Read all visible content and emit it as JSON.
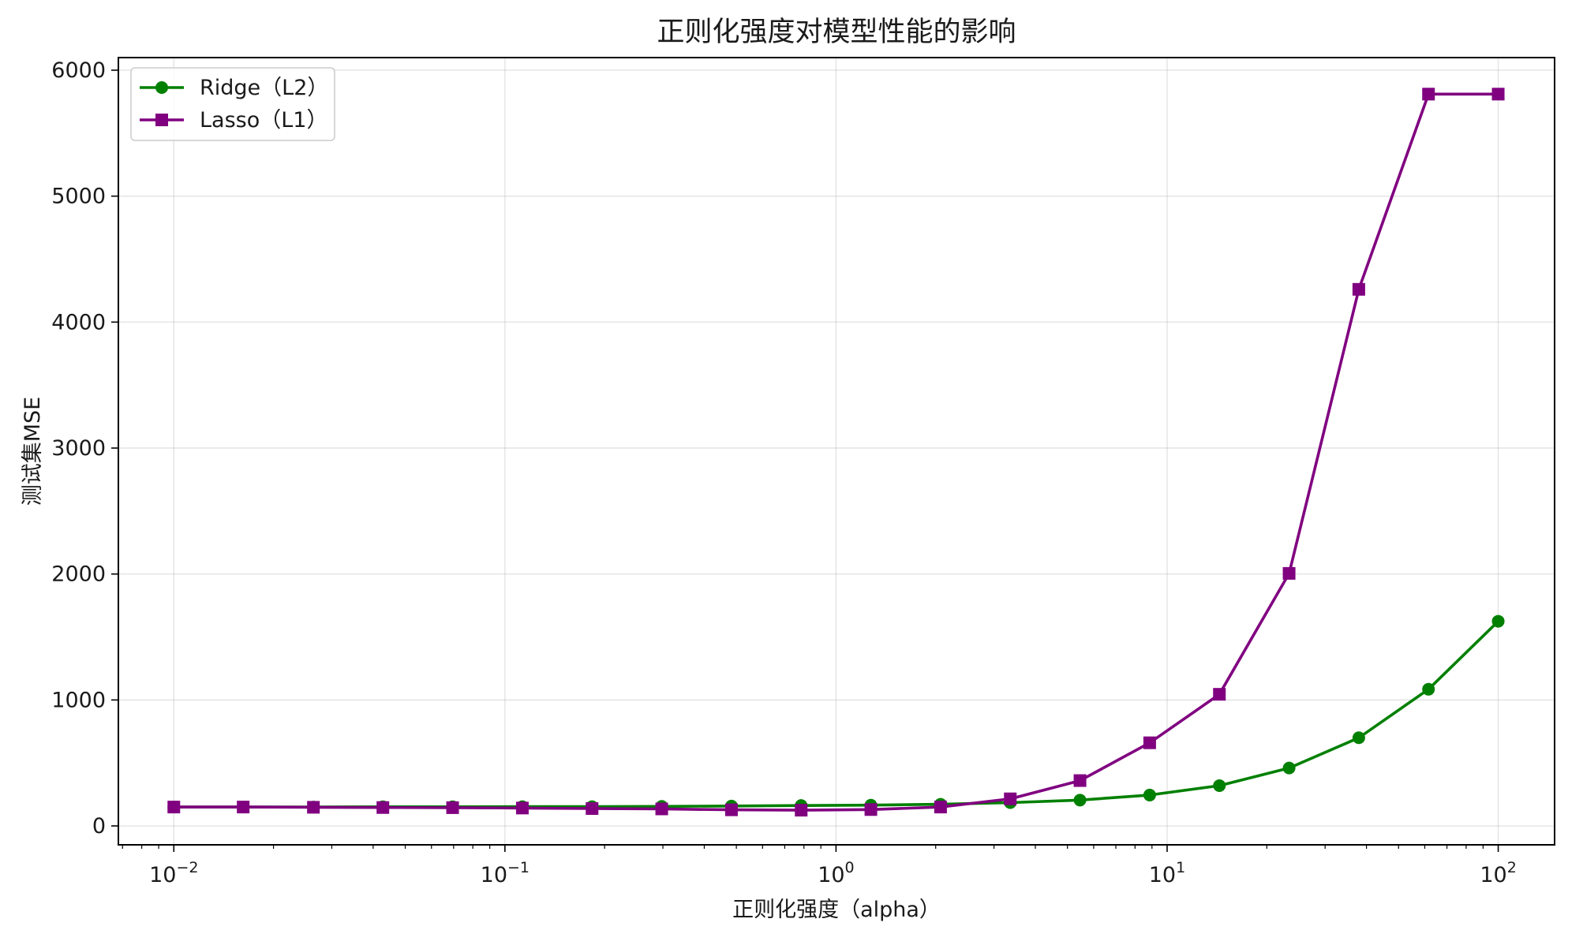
{
  "chart_data": {
    "type": "line",
    "title": "正则化强度对模型性能的影响",
    "xlabel": "正则化强度（alpha）",
    "ylabel": "测试集MSE",
    "xscale": "log",
    "xlim": [
      0.0068,
      148
    ],
    "ylim": [
      -150,
      6100
    ],
    "x_ticks": [
      {
        "value": 0.01,
        "base": "10",
        "exp": "−2"
      },
      {
        "value": 0.1,
        "base": "10",
        "exp": "−1"
      },
      {
        "value": 1,
        "base": "10",
        "exp": "0"
      },
      {
        "value": 10,
        "base": "10",
        "exp": "1"
      },
      {
        "value": 100,
        "base": "10",
        "exp": "2"
      }
    ],
    "y_ticks": [
      0,
      1000,
      2000,
      3000,
      4000,
      5000,
      6000
    ],
    "grid": true,
    "legend_position": "top-left",
    "x": [
      0.01,
      0.0162,
      0.0264,
      0.0428,
      0.0695,
      0.1129,
      0.1833,
      0.2976,
      0.4833,
      0.7848,
      1.2743,
      2.0691,
      3.3598,
      5.4556,
      8.8587,
      14.3845,
      23.3572,
      37.9269,
      61.5848,
      100
    ],
    "series": [
      {
        "name": "Ridge（L2）",
        "color": "#008000",
        "marker": "circle",
        "values": [
          150,
          150,
          150,
          152,
          152,
          153,
          153,
          155,
          158,
          162,
          165,
          172,
          185,
          205,
          245,
          320,
          460,
          700,
          1085,
          1625
        ]
      },
      {
        "name": "Lasso（L1）",
        "color": "#800080",
        "marker": "square",
        "values": [
          150,
          150,
          148,
          146,
          145,
          142,
          138,
          135,
          128,
          125,
          130,
          150,
          215,
          360,
          660,
          1045,
          2005,
          4260,
          5810,
          5810
        ]
      }
    ]
  }
}
